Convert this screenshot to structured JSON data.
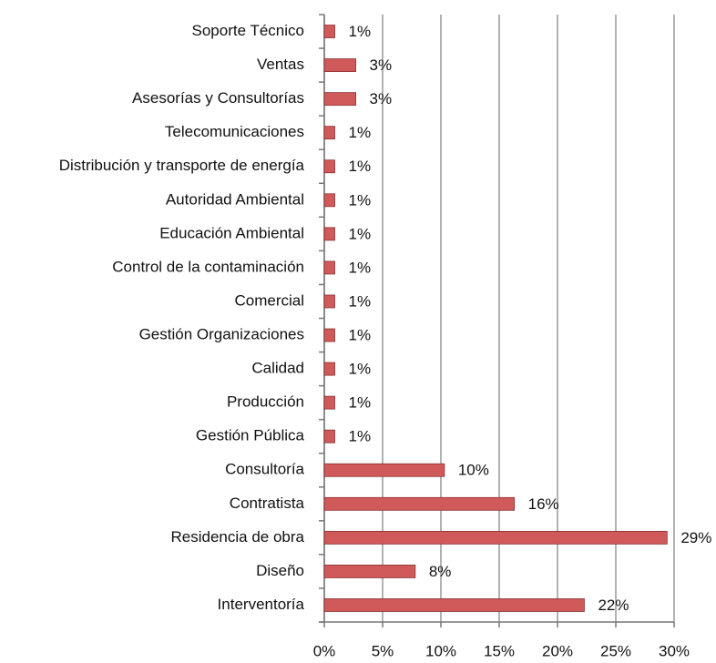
{
  "chart_data": {
    "type": "bar",
    "orientation": "horizontal",
    "categories": [
      "Soporte Técnico",
      "Ventas",
      "Asesorías y Consultorías",
      "Telecomunicaciones",
      "Distribución y transporte de energía",
      "Autoridad Ambiental",
      "Educación Ambiental",
      "Control de la contaminación",
      "Comercial",
      "Gestión Organizaciones",
      "Calidad",
      "Producción ",
      "Gestión Pública",
      "Consultoría",
      "Contratista",
      "Residencia de obra",
      "Diseño",
      "Interventoría"
    ],
    "values": [
      0.9,
      2.7,
      2.7,
      0.9,
      0.9,
      0.9,
      0.9,
      0.9,
      0.9,
      0.9,
      0.9,
      0.9,
      0.9,
      10.3,
      16.3,
      29.4,
      7.8,
      22.3
    ],
    "value_labels": [
      "1%",
      "3%",
      "3%",
      "1%",
      "1%",
      "1%",
      "1%",
      "1%",
      "1%",
      "1%",
      "1%",
      "1%",
      "1%",
      "10%",
      "16%",
      "29%",
      "8%",
      "22%"
    ],
    "color": "#d05a5a",
    "xlim": [
      0,
      30
    ],
    "xticks": [
      {
        "value": 0,
        "label": "0%"
      },
      {
        "value": 5,
        "label": "5%"
      },
      {
        "value": 10,
        "label": "10%"
      },
      {
        "value": 15,
        "label": "15%"
      },
      {
        "value": 20,
        "label": "20%"
      },
      {
        "value": 25,
        "label": "25%"
      },
      {
        "value": 30,
        "label": "30%"
      }
    ],
    "grid": true
  }
}
